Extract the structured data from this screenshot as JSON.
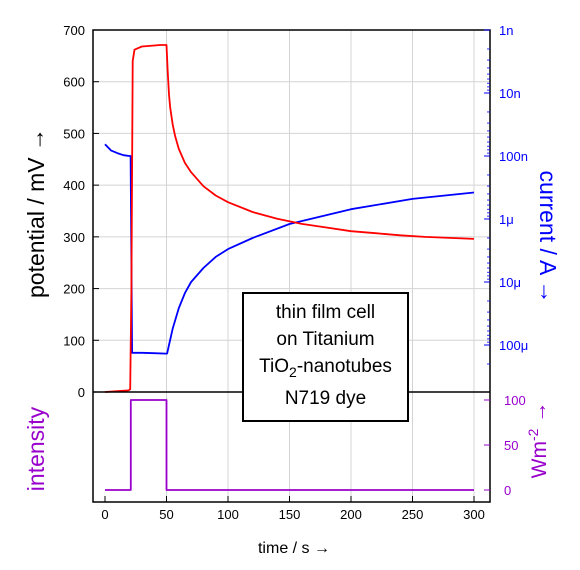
{
  "colors": {
    "potential": "#ff0000",
    "current": "#0000ff",
    "intensity": "#9900cc",
    "axis": "#000000",
    "grid": "#d4d4d4"
  },
  "annotation": [
    "thin film cell",
    "on Titanium",
    "TiO2-nanotubes",
    "N719 dye"
  ],
  "chart_data": [
    {
      "type": "line",
      "title": "",
      "xlabel": "time / s →",
      "ylabel": "potential / mV →",
      "y2label": "current / A →",
      "xlim": [
        -10,
        305
      ],
      "ylim": [
        0,
        700
      ],
      "y2_scale": "log",
      "y2_reversed": true,
      "y2lim": [
        1e-09,
        0.0003
      ],
      "x_ticks": [
        0,
        50,
        100,
        150,
        200,
        250,
        300
      ],
      "y_ticks": [
        0,
        100,
        200,
        300,
        400,
        500,
        600,
        700
      ],
      "y2_ticks": [
        {
          "label": "1n",
          "value": 1e-09
        },
        {
          "label": "10n",
          "value": 1e-08
        },
        {
          "label": "100n",
          "value": 1e-07
        },
        {
          "label": "1μ",
          "value": 1e-06
        },
        {
          "label": "10μ",
          "value": 1e-05
        },
        {
          "label": "100μ",
          "value": 0.0001
        }
      ],
      "grid": true,
      "series": [
        {
          "name": "potential",
          "axis": "left",
          "x": [
            0,
            19,
            20.5,
            21.5,
            22.5,
            24,
            27,
            30,
            35,
            40,
            45,
            50,
            51,
            52,
            53,
            55,
            57,
            60,
            65,
            70,
            80,
            90,
            100,
            120,
            140,
            160,
            180,
            200,
            220,
            240,
            260,
            280,
            300
          ],
          "y": [
            0,
            3,
            5,
            200,
            640,
            662,
            665,
            668,
            669,
            670,
            671,
            671,
            620,
            575,
            550,
            517,
            495,
            470,
            443,
            425,
            398,
            380,
            367,
            348,
            335,
            325,
            318,
            311,
            307,
            303,
            300,
            298,
            296
          ]
        },
        {
          "name": "current",
          "axis": "right",
          "x": [
            0,
            5,
            10,
            15,
            20,
            20.8,
            22,
            30,
            40,
            49.5,
            50.5,
            52,
            55,
            60,
            65,
            70,
            80,
            90,
            100,
            120,
            150,
            200,
            250,
            300
          ],
          "y": [
            6.5e-08,
            8.2e-08,
            9e-08,
            9.7e-08,
            1e-07,
            1e-07,
            0.000133,
            0.000133,
            0.000135,
            0.000137,
            0.000137,
            0.0001,
            5.5e-05,
            2.6e-05,
            1.5e-05,
            1e-05,
            6e-06,
            4e-06,
            3e-06,
            2e-06,
            1.2e-06,
            7e-07,
            4.8e-07,
            3.8e-07
          ]
        }
      ]
    },
    {
      "type": "line",
      "xlabel": "time / s →",
      "ylabel": "intensity",
      "y2label": "Wm-2 →",
      "xlim": [
        -10,
        305
      ],
      "ylim": [
        -10,
        110
      ],
      "y2_ticks": [
        0,
        50,
        100
      ],
      "series": [
        {
          "name": "intensity",
          "axis": "right",
          "x": [
            0,
            21,
            21,
            50,
            50,
            300
          ],
          "y": [
            0,
            0,
            100,
            100,
            0,
            0
          ]
        }
      ]
    }
  ]
}
